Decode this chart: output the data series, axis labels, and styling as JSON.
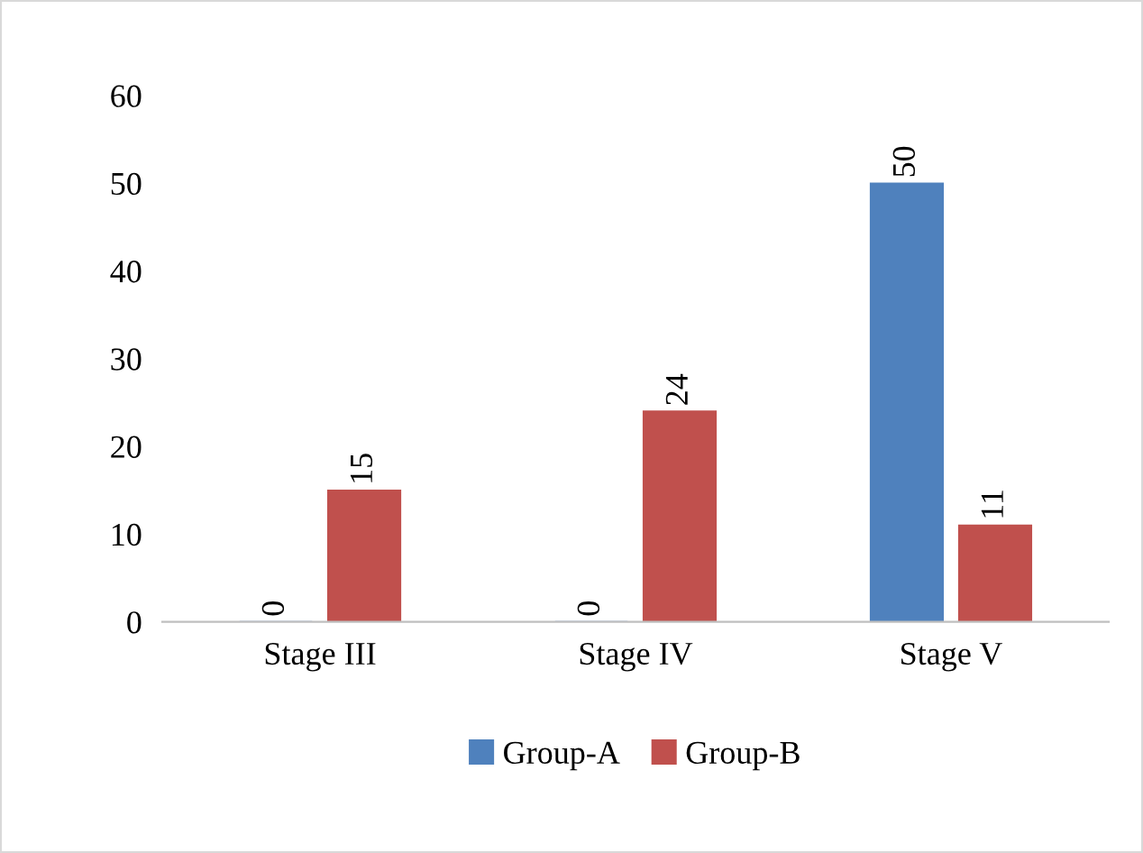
{
  "chart_data": {
    "type": "bar",
    "categories": [
      "Stage III",
      "Stage IV",
      "Stage V"
    ],
    "series": [
      {
        "name": "Group-A",
        "color": "#4f81bd",
        "values": [
          0,
          0,
          50
        ]
      },
      {
        "name": "Group-B",
        "color": "#c0504d",
        "values": [
          15,
          24,
          11
        ]
      }
    ],
    "ylim": [
      0,
      60
    ],
    "yticks": [
      0,
      10,
      20,
      30,
      40,
      50,
      60
    ],
    "data_labels": true,
    "legend": "bottom",
    "grid": false
  }
}
